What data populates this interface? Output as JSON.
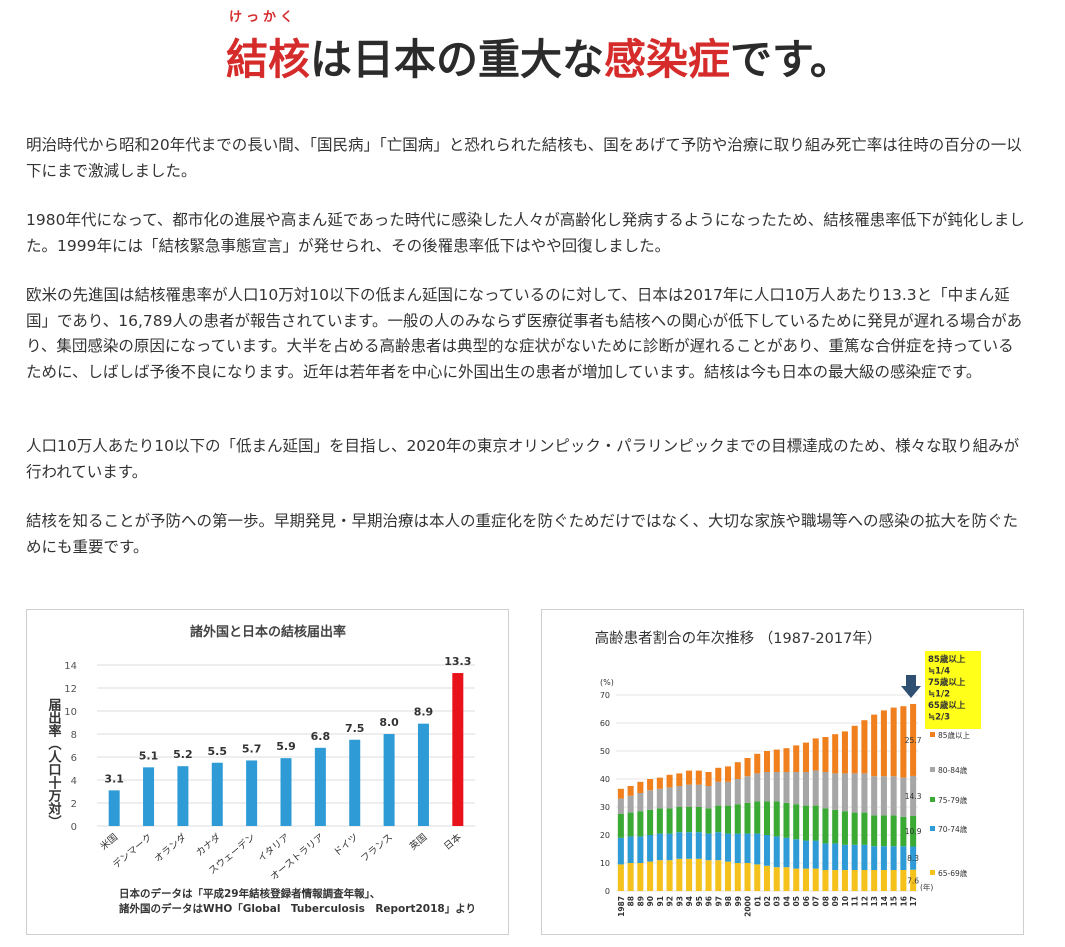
{
  "heading": {
    "ruby": "けっかく",
    "part1": "結核",
    "part2": "は日本の重大な",
    "part3": "感染症",
    "part4": "です。"
  },
  "paragraphs": [
    "明治時代から昭和20年代までの長い間、「国民病」「亡国病」と恐れられた結核も、国をあげて予防や治療に取り組み死亡率は往時の百分の一以下にまで激減しました。",
    "1980年代になって、都市化の進展や高まん延であった時代に感染した人々が高齢化し発病するようになったため、結核罹患率低下が鈍化しました。1999年には「結核緊急事態宣言」が発せられ、その後罹患率低下はやや回復しました。",
    "欧米の先進国は結核罹患率が人口10万対10以下の低まん延国になっているのに対して、日本は2017年に人口10万人あたり13.3と「中まん延国」であり、16,789人の患者が報告されています。一般の人のみならず医療従事者も結核への関心が低下しているために発見が遅れる場合があり、集団感染の原因になっています。大半を占める高齢患者は典型的な症状がないために診断が遅れることがあり、重篤な合併症を持っているために、しばしば予後不良になります。近年は若年者を中心に外国出生の患者が増加しています。結核は今も日本の最大級の感染症です。",
    "人口10万人あたり10以下の「低まん延国」を目指し、2020年の東京オリンピック・パラリンピックまでの目標達成のため、様々な取り組みが行われています。",
    "結核を知ることが予防への第一歩。早期発見・早期治療は本人の重症化を防ぐためだけではなく、大切な家族や職場等への感染の拡大を防ぐためにも重要です。"
  ],
  "chart_data": [
    {
      "type": "bar",
      "title": "諸外国と日本の結核届出率",
      "ylabel": "届出率（人口十万対）",
      "ylim": [
        0,
        14
      ],
      "yticks": [
        0,
        2,
        4,
        6,
        8,
        10,
        12,
        14
      ],
      "categories": [
        "米国",
        "デンマーク",
        "オランダ",
        "カナダ",
        "スウェーデン",
        "イタリア",
        "オーストラリア",
        "ドイツ",
        "フランス",
        "英国",
        "日本"
      ],
      "values": [
        3.1,
        5.1,
        5.2,
        5.5,
        5.7,
        5.9,
        6.8,
        7.5,
        8.0,
        8.9,
        13.3
      ],
      "value_labels": [
        "3.1",
        "5.1",
        "5.2",
        "5.5",
        "5.7",
        "5.9",
        "6.8",
        "7.5",
        "8.0",
        "8.9",
        "13.3"
      ],
      "colors": {
        "others": "#2e9bd6",
        "japan": "#e8121a"
      },
      "note_line1": "日本のデータは「平成29年結核登録者情報調査年報」、",
      "note_line2": "諸外国のデータはWHO「Global　Tuberculosis　Report2018」より"
    },
    {
      "type": "bar",
      "stacked": true,
      "title": "高齢患者割合の年次推移 （1987-2017年）",
      "ylabel": "(%)",
      "xlabel": "(年)",
      "ylim": [
        0,
        70
      ],
      "yticks": [
        0,
        10,
        20,
        30,
        40,
        50,
        60,
        70
      ],
      "categories": [
        "1987",
        "88",
        "89",
        "90",
        "91",
        "92",
        "93",
        "94",
        "95",
        "96",
        "97",
        "98",
        "99",
        "2000",
        "01",
        "02",
        "03",
        "04",
        "05",
        "06",
        "07",
        "08",
        "09",
        "10",
        "11",
        "12",
        "13",
        "14",
        "15",
        "16",
        "17"
      ],
      "series": [
        {
          "name": "65-69歳",
          "color": "#f5c11c",
          "values": [
            9.5,
            10,
            10,
            10.5,
            11,
            11,
            11.5,
            11.5,
            11.5,
            11,
            11,
            10.5,
            10,
            10,
            9.5,
            9,
            8.5,
            8.5,
            8,
            8,
            8,
            7.5,
            7.5,
            7.5,
            7.5,
            7.5,
            7.5,
            7.5,
            7.5,
            7.5,
            7.6
          ]
        },
        {
          "name": "70-74歳",
          "color": "#2e9bd6",
          "values": [
            9.5,
            9.5,
            9.5,
            9.5,
            9.5,
            9.5,
            9.5,
            9.5,
            9.5,
            9.5,
            10,
            10,
            10.5,
            10.5,
            11,
            11,
            11,
            10.5,
            10.5,
            10,
            10,
            9.5,
            9.5,
            9,
            9,
            9,
            8.5,
            8.5,
            8.5,
            8.5,
            8.3
          ]
        },
        {
          "name": "75-79歳",
          "color": "#3aaa35",
          "values": [
            8.5,
            8.5,
            9,
            9,
            9,
            9,
            9,
            9,
            9,
            9,
            9.5,
            10,
            10.5,
            11,
            11.5,
            12,
            12.5,
            12.5,
            12.5,
            12.5,
            12.5,
            12.5,
            12,
            12,
            11.5,
            11.5,
            11,
            11,
            11,
            10.5,
            10.9
          ]
        },
        {
          "name": "80-84歳",
          "color": "#a6a6a6",
          "values": [
            5.5,
            6,
            6.5,
            7,
            7,
            7.5,
            7.5,
            8,
            8,
            8,
            8.5,
            8.5,
            9,
            9.5,
            10,
            10.5,
            10.5,
            11,
            11.5,
            12,
            12.5,
            13,
            13,
            13.5,
            14,
            14,
            14,
            14,
            14,
            14,
            14.3
          ]
        },
        {
          "name": "85歳以上",
          "color": "#f07f1d",
          "values": [
            3.5,
            3.5,
            4,
            4,
            4,
            4.5,
            4.5,
            5,
            5,
            5,
            5,
            5.5,
            6,
            6.5,
            7,
            7.5,
            8,
            8.5,
            9.5,
            10.5,
            11.5,
            12.5,
            14,
            15,
            17,
            19,
            22,
            23.5,
            24.5,
            25.5,
            25.7
          ]
        }
      ],
      "end_labels": [
        "7.6",
        "8.3",
        "10.9",
        "14.3",
        "25.7"
      ],
      "callout_lines": [
        "85歳以上",
        "≒1/4",
        "75歳以上",
        "≒1/2",
        "65歳以上",
        "≒2/3"
      ],
      "callout_color": "#ffff1a",
      "arrow_color": "#2f4f73"
    }
  ]
}
